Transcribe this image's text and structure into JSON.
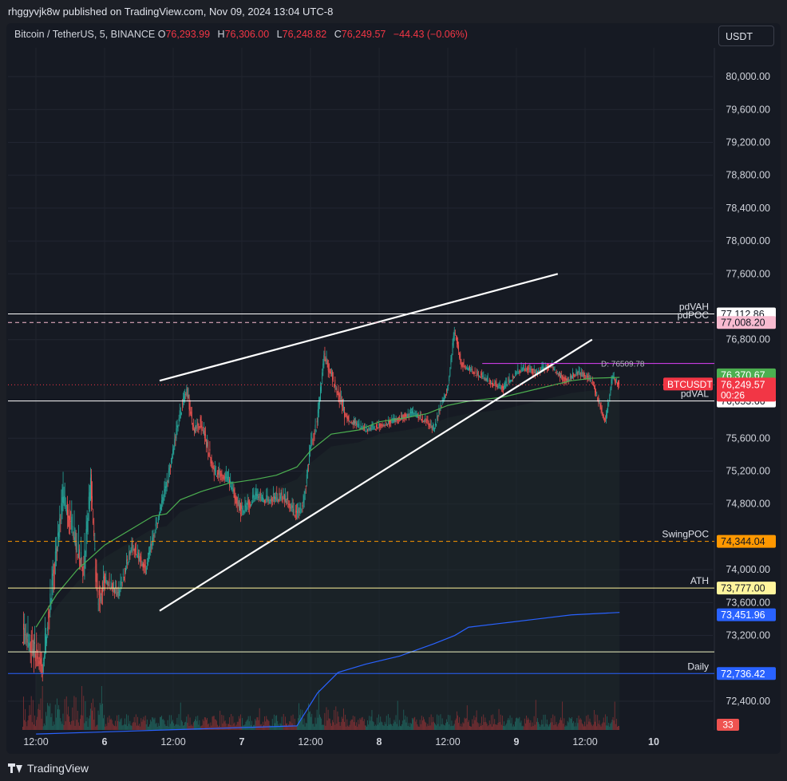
{
  "publisher": "rhggyvjk8w published on TradingView.com, Nov 09, 2024 13:04 UTC-8",
  "symbol": "Bitcoin / TetherUS, 5, BINANCE",
  "ohlc": {
    "o_label": "O",
    "o": "76,293.99",
    "h_label": "H",
    "h": "76,306.00",
    "l_label": "L",
    "l": "76,248.82",
    "c_label": "C",
    "c": "76,249.57",
    "change": "−44.43 (−0.06%)"
  },
  "currency_button": "USDT",
  "footer_brand": "TradingView",
  "colors": {
    "background": "#161a23",
    "up": "#26a69a",
    "down": "#ef5350",
    "vwap": "#4caf50",
    "fib_blue": "#2962ff"
  },
  "chart_data": {
    "type": "candlestick",
    "ylim": [
      72050,
      80350
    ],
    "y_ticks": [
      80000,
      79600,
      79200,
      78800,
      78400,
      78000,
      77600,
      76800,
      75600,
      75200,
      74800,
      74000,
      73600,
      73200,
      72400
    ],
    "y_tick_labels": [
      "80,000.00",
      "79,600.00",
      "79,200.00",
      "78,800.00",
      "78,400.00",
      "78,000.00",
      "77,600.00",
      "76,800.00",
      "75,600.00",
      "75,200.00",
      "74,800.00",
      "74,000.00",
      "73,600.00",
      "73,200.00",
      "72,400.00"
    ],
    "x_ticks": [
      "12:00",
      "6",
      "12:00",
      "7",
      "12:00",
      "8",
      "12:00",
      "9",
      "12:00",
      "10"
    ],
    "price_path": [
      [
        0,
        73250
      ],
      [
        3,
        72850
      ],
      [
        6,
        74900
      ],
      [
        9,
        74000
      ],
      [
        10,
        75100
      ],
      [
        11,
        73600
      ],
      [
        12,
        73900
      ],
      [
        14,
        73700
      ],
      [
        16,
        74300
      ],
      [
        18,
        74000
      ],
      [
        20,
        74700
      ],
      [
        21,
        75000
      ],
      [
        23,
        75900
      ],
      [
        24,
        76200
      ],
      [
        25,
        75700
      ],
      [
        26,
        75800
      ],
      [
        28,
        75200
      ],
      [
        30,
        75100
      ],
      [
        32,
        74700
      ],
      [
        34,
        74900
      ],
      [
        36,
        74850
      ],
      [
        38,
        74900
      ],
      [
        40,
        74650
      ],
      [
        41,
        74800
      ],
      [
        42,
        75500
      ],
      [
        43,
        75800
      ],
      [
        44,
        76600
      ],
      [
        45,
        76400
      ],
      [
        47,
        75900
      ],
      [
        48,
        75800
      ],
      [
        50,
        75700
      ],
      [
        52,
        75750
      ],
      [
        55,
        75850
      ],
      [
        57,
        75900
      ],
      [
        59,
        75800
      ],
      [
        60,
        75700
      ],
      [
        61,
        76000
      ],
      [
        62,
        76200
      ],
      [
        63,
        76900
      ],
      [
        64,
        76500
      ],
      [
        66,
        76400
      ],
      [
        68,
        76300
      ],
      [
        70,
        76200
      ],
      [
        72,
        76400
      ],
      [
        73,
        76450
      ],
      [
        75,
        76400
      ],
      [
        77,
        76500
      ],
      [
        79,
        76300
      ],
      [
        81,
        76400
      ],
      [
        83,
        76300
      ],
      [
        84,
        76050
      ],
      [
        85,
        75800
      ],
      [
        86,
        76350
      ],
      [
        87,
        76249.57
      ]
    ],
    "session_x": [
      2,
      21,
      41,
      61,
      81
    ],
    "vwap": [
      [
        2,
        73300
      ],
      [
        5,
        73700
      ],
      [
        8,
        74000
      ],
      [
        12,
        74300
      ],
      [
        16,
        74500
      ],
      [
        19,
        74650
      ],
      [
        21,
        74680
      ],
      [
        23,
        74850
      ],
      [
        26,
        74950
      ],
      [
        30,
        75050
      ],
      [
        34,
        75100
      ],
      [
        37,
        75150
      ],
      [
        40,
        75250
      ],
      [
        42,
        75450
      ],
      [
        45,
        75650
      ],
      [
        49,
        75700
      ],
      [
        52,
        75800
      ],
      [
        56,
        75850
      ],
      [
        59,
        75900
      ],
      [
        62,
        76000
      ],
      [
        65,
        76050
      ],
      [
        70,
        76100
      ],
      [
        75,
        76200
      ],
      [
        80,
        76300
      ],
      [
        83,
        76330
      ],
      [
        87,
        76340
      ]
    ],
    "blue_vwap": [
      [
        2,
        72000
      ],
      [
        40,
        72100
      ],
      [
        43,
        72500
      ],
      [
        46,
        72750
      ],
      [
        50,
        72850
      ],
      [
        55,
        72950
      ],
      [
        60,
        73100
      ],
      [
        63,
        73200
      ],
      [
        65,
        73300
      ],
      [
        70,
        73350
      ],
      [
        75,
        73400
      ],
      [
        80,
        73450
      ],
      [
        87,
        73480
      ]
    ],
    "trendlines": [
      {
        "from": [
          20,
          76300
        ],
        "to": [
          78,
          77600
        ]
      },
      {
        "from": [
          20,
          73500
        ],
        "to": [
          83,
          76800
        ]
      }
    ],
    "levels": [
      {
        "label": "pdVAH",
        "value": 77112.86,
        "tag": "77,112.86",
        "color": "#ffffff",
        "tag_bg": "#ffffff",
        "tag_fg": "#131722",
        "style": "solid"
      },
      {
        "label": "pdPOC",
        "value": 77008.2,
        "tag": "77,008.20",
        "color": "#f8bbd0",
        "tag_bg": "#f8bbd0",
        "tag_fg": "#131722",
        "style": "dashed"
      },
      {
        "label": "pdVAL",
        "value": 76053.66,
        "tag": "76,053.66",
        "color": "#ffffff",
        "tag_bg": "#ffffff",
        "tag_fg": "#131722",
        "style": "solid"
      },
      {
        "label": "SwingPOC",
        "value": 74344.04,
        "tag": "74,344.04",
        "color": "#ff9800",
        "tag_bg": "#ff9800",
        "tag_fg": "#131722",
        "style": "dashed"
      },
      {
        "label": "ATH",
        "value": 73777.0,
        "tag": "73,777.00",
        "color": "#fff59d",
        "tag_bg": "#fff59d",
        "tag_fg": "#131722",
        "style": "solid"
      },
      {
        "label": "",
        "value": 73000,
        "tag": "",
        "color": "#f0f4c3",
        "tag_bg": "",
        "tag_fg": "",
        "style": "solid"
      },
      {
        "label": "Daily",
        "value": 72736.42,
        "tag": "72,736.42",
        "color": "#2962ff",
        "tag_bg": "#2962ff",
        "tag_fg": "#ffffff",
        "style": "solid"
      }
    ],
    "extra_tags": [
      {
        "value": 76370.67,
        "tag": "76,370.67",
        "bg": "#4caf50",
        "fg": "#ffffff"
      },
      {
        "value": 73451.96,
        "tag": "73,451.96",
        "bg": "#2962ff",
        "fg": "#ffffff"
      }
    ],
    "current_price": {
      "symbol": "BTCUSDT",
      "value": 76249.57,
      "tag": "76,249.57",
      "countdown": "00:26",
      "bg": "#f23645"
    },
    "volume_tag": "33",
    "d_label": "D: 76509.78",
    "d_value": 76509.78
  }
}
